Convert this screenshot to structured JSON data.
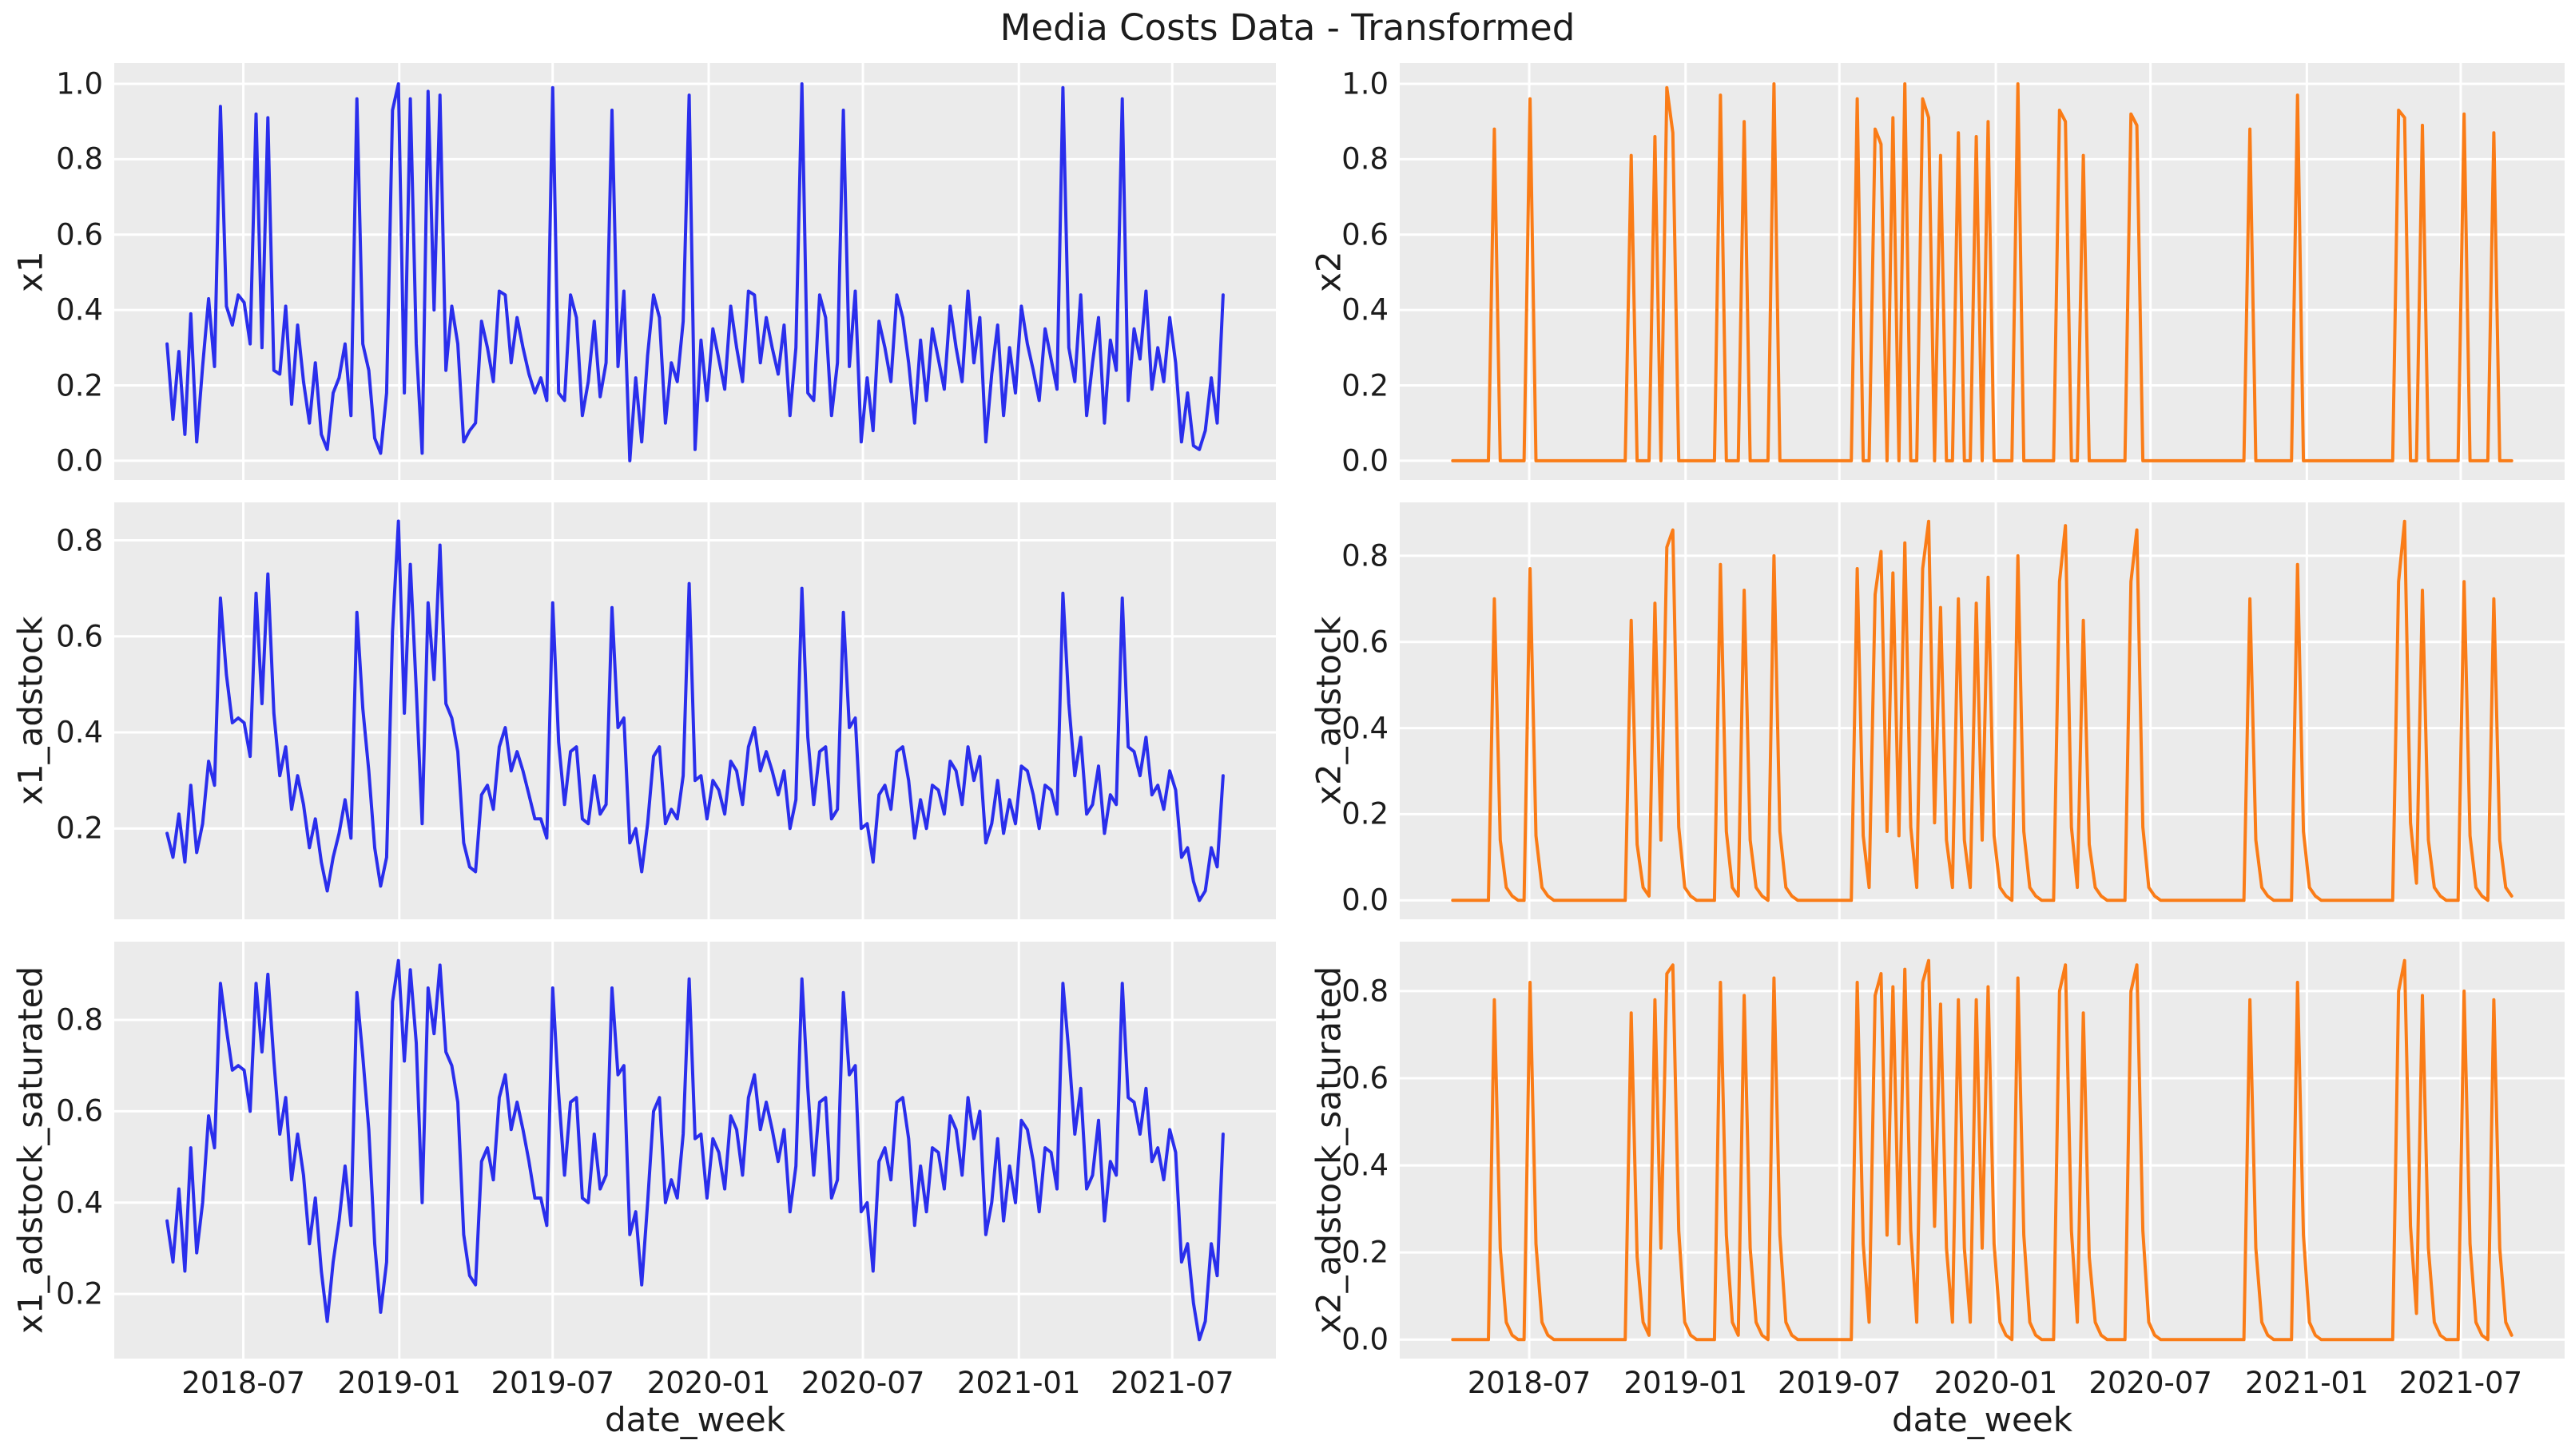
{
  "title": "Media Costs Data - Transformed",
  "style": {
    "background": "#ffffff",
    "plot_background": "#ebebeb",
    "grid_color": "#ffffff",
    "text_color": "#1c1c1c",
    "x1_color": "#2a2eec",
    "x2_color": "#fa7c17"
  },
  "chart_data": {
    "type": "line",
    "suptitle": "Media Costs Data - Transformed",
    "xlabel": "date_week",
    "n_weeks": 179,
    "x_axis_range": [
      "2018-04",
      "2021-08"
    ],
    "grid": true,
    "legend": false,
    "x_ticks": [
      {
        "label": "2018-07",
        "week_index": 12.86
      },
      {
        "label": "2019-01",
        "week_index": 39.14
      },
      {
        "label": "2019-07",
        "week_index": 65.0
      },
      {
        "label": "2020-01",
        "week_index": 91.29
      },
      {
        "label": "2020-07",
        "week_index": 117.29
      },
      {
        "label": "2021-01",
        "week_index": 143.57
      },
      {
        "label": "2021-07",
        "week_index": 169.43
      }
    ],
    "charts": [
      {
        "id": "x1",
        "ylabel": "x1",
        "color": "#2a2eec",
        "yticks": [
          0.0,
          0.2,
          0.4,
          0.6,
          0.8,
          1.0
        ],
        "ylim": [
          -0.051,
          1.055
        ],
        "values": [
          0.31,
          0.11,
          0.29,
          0.07,
          0.39,
          0.05,
          0.25,
          0.43,
          0.25,
          0.94,
          0.41,
          0.36,
          0.44,
          0.42,
          0.31,
          0.92,
          0.3,
          0.91,
          0.24,
          0.23,
          0.41,
          0.15,
          0.36,
          0.21,
          0.1,
          0.26,
          0.07,
          0.03,
          0.18,
          0.22,
          0.31,
          0.12,
          0.96,
          0.31,
          0.24,
          0.06,
          0.02,
          0.18,
          0.93,
          1.0,
          0.18,
          0.96,
          0.31,
          0.02,
          0.98,
          0.4,
          0.97,
          0.24,
          0.41,
          0.31,
          0.05,
          0.08,
          0.1,
          0.37,
          0.3,
          0.21,
          0.45,
          0.44,
          0.26,
          0.38,
          0.3,
          0.23,
          0.18,
          0.22,
          0.16,
          0.99,
          0.18,
          0.16,
          0.44,
          0.38,
          0.12,
          0.21,
          0.37,
          0.17,
          0.26,
          0.93,
          0.25,
          0.45,
          0.0,
          0.22,
          0.05,
          0.28,
          0.44,
          0.38,
          0.1,
          0.26,
          0.21,
          0.37,
          0.97,
          0.03,
          0.32,
          0.16,
          0.35,
          0.27,
          0.19,
          0.41,
          0.3,
          0.21,
          0.45,
          0.44,
          0.26,
          0.38,
          0.3,
          0.23,
          0.36,
          0.12,
          0.3,
          1.0,
          0.18,
          0.16,
          0.44,
          0.38,
          0.12,
          0.26,
          0.93,
          0.25,
          0.45,
          0.05,
          0.22,
          0.08,
          0.37,
          0.3,
          0.21,
          0.44,
          0.38,
          0.26,
          0.1,
          0.32,
          0.16,
          0.35,
          0.27,
          0.19,
          0.41,
          0.3,
          0.21,
          0.45,
          0.26,
          0.38,
          0.05,
          0.23,
          0.36,
          0.12,
          0.3,
          0.18,
          0.41,
          0.31,
          0.24,
          0.16,
          0.35,
          0.27,
          0.19,
          0.99,
          0.3,
          0.21,
          0.44,
          0.12,
          0.26,
          0.38,
          0.1,
          0.32,
          0.24,
          0.96,
          0.16,
          0.35,
          0.27,
          0.45,
          0.19,
          0.3,
          0.21,
          0.38,
          0.26,
          0.05,
          0.18,
          0.04,
          0.03,
          0.08,
          0.22,
          0.1,
          0.44
        ]
      },
      {
        "id": "x2",
        "ylabel": "x2",
        "color": "#fa7c17",
        "yticks": [
          0.0,
          0.2,
          0.4,
          0.6,
          0.8,
          1.0
        ],
        "ylim": [
          -0.051,
          1.055
        ],
        "values": [
          0,
          0,
          0,
          0,
          0,
          0,
          0,
          0.88,
          0,
          0,
          0,
          0,
          0,
          0.96,
          0,
          0,
          0,
          0,
          0,
          0,
          0,
          0,
          0,
          0,
          0,
          0,
          0,
          0,
          0,
          0,
          0.81,
          0,
          0,
          0,
          0.86,
          0,
          0.99,
          0.87,
          0,
          0,
          0,
          0,
          0,
          0,
          0,
          0.97,
          0,
          0,
          0,
          0.9,
          0,
          0,
          0,
          0,
          1.0,
          0,
          0,
          0,
          0,
          0,
          0,
          0,
          0,
          0,
          0,
          0,
          0,
          0,
          0.96,
          0,
          0,
          0.88,
          0.84,
          0,
          0.91,
          0,
          1.0,
          0,
          0,
          0.96,
          0.91,
          0,
          0.81,
          0,
          0,
          0.87,
          0,
          0,
          0.86,
          0,
          0.9,
          0,
          0,
          0,
          0,
          1.0,
          0,
          0,
          0,
          0,
          0,
          0,
          0.93,
          0.9,
          0,
          0,
          0.81,
          0,
          0,
          0,
          0,
          0,
          0,
          0,
          0.92,
          0.89,
          0,
          0,
          0,
          0,
          0,
          0,
          0,
          0,
          0,
          0,
          0,
          0,
          0,
          0,
          0,
          0,
          0,
          0,
          0.88,
          0,
          0,
          0,
          0,
          0,
          0,
          0,
          0.97,
          0,
          0,
          0,
          0,
          0,
          0,
          0,
          0,
          0,
          0,
          0,
          0,
          0,
          0,
          0,
          0,
          0.93,
          0.91,
          0,
          0,
          0.89,
          0,
          0,
          0,
          0,
          0,
          0,
          0.92,
          0,
          0,
          0,
          0,
          0.87,
          0,
          0,
          0
        ]
      },
      {
        "id": "x1_adstock",
        "ylabel": "x1_adstock",
        "color": "#2a2eec",
        "yticks": [
          0.2,
          0.4,
          0.6,
          0.8
        ],
        "ylim": [
          0.011,
          0.879
        ],
        "values": [
          0.19,
          0.14,
          0.23,
          0.13,
          0.29,
          0.15,
          0.21,
          0.34,
          0.29,
          0.68,
          0.52,
          0.42,
          0.43,
          0.42,
          0.35,
          0.69,
          0.46,
          0.73,
          0.44,
          0.31,
          0.37,
          0.24,
          0.31,
          0.25,
          0.16,
          0.22,
          0.13,
          0.07,
          0.14,
          0.19,
          0.26,
          0.18,
          0.65,
          0.45,
          0.32,
          0.16,
          0.08,
          0.14,
          0.61,
          0.84,
          0.44,
          0.75,
          0.49,
          0.21,
          0.67,
          0.51,
          0.79,
          0.46,
          0.43,
          0.36,
          0.17,
          0.12,
          0.11,
          0.27,
          0.29,
          0.24,
          0.37,
          0.41,
          0.32,
          0.36,
          0.32,
          0.27,
          0.22,
          0.22,
          0.18,
          0.67,
          0.38,
          0.25,
          0.36,
          0.37,
          0.22,
          0.21,
          0.31,
          0.23,
          0.25,
          0.66,
          0.41,
          0.43,
          0.17,
          0.2,
          0.11,
          0.21,
          0.35,
          0.37,
          0.21,
          0.24,
          0.22,
          0.31,
          0.71,
          0.3,
          0.31,
          0.22,
          0.3,
          0.28,
          0.23,
          0.34,
          0.32,
          0.25,
          0.37,
          0.41,
          0.32,
          0.36,
          0.32,
          0.27,
          0.32,
          0.2,
          0.26,
          0.7,
          0.39,
          0.25,
          0.36,
          0.37,
          0.22,
          0.24,
          0.65,
          0.41,
          0.43,
          0.2,
          0.21,
          0.13,
          0.27,
          0.29,
          0.24,
          0.36,
          0.37,
          0.3,
          0.18,
          0.26,
          0.2,
          0.29,
          0.28,
          0.23,
          0.34,
          0.32,
          0.25,
          0.37,
          0.3,
          0.35,
          0.17,
          0.21,
          0.3,
          0.19,
          0.26,
          0.21,
          0.33,
          0.32,
          0.27,
          0.2,
          0.29,
          0.28,
          0.23,
          0.69,
          0.46,
          0.31,
          0.39,
          0.23,
          0.25,
          0.33,
          0.19,
          0.27,
          0.25,
          0.68,
          0.37,
          0.36,
          0.31,
          0.39,
          0.27,
          0.29,
          0.24,
          0.32,
          0.28,
          0.14,
          0.16,
          0.09,
          0.05,
          0.07,
          0.16,
          0.12,
          0.31
        ]
      },
      {
        "id": "x2_adstock",
        "ylabel": "x2_adstock",
        "color": "#fa7c17",
        "yticks": [
          0.0,
          0.2,
          0.4,
          0.6,
          0.8
        ],
        "ylim": [
          -0.044,
          0.924
        ],
        "values": [
          0,
          0,
          0,
          0,
          0,
          0,
          0,
          0.7,
          0.14,
          0.03,
          0.01,
          0,
          0,
          0.77,
          0.15,
          0.03,
          0.01,
          0,
          0,
          0,
          0,
          0,
          0,
          0,
          0,
          0,
          0,
          0,
          0,
          0,
          0.65,
          0.13,
          0.03,
          0.01,
          0.69,
          0.14,
          0.82,
          0.86,
          0.17,
          0.03,
          0.01,
          0,
          0,
          0,
          0,
          0.78,
          0.16,
          0.03,
          0.01,
          0.72,
          0.14,
          0.03,
          0.01,
          0,
          0.8,
          0.16,
          0.03,
          0.01,
          0,
          0,
          0,
          0,
          0,
          0,
          0,
          0,
          0,
          0,
          0.77,
          0.15,
          0.03,
          0.71,
          0.81,
          0.16,
          0.76,
          0.15,
          0.83,
          0.17,
          0.03,
          0.77,
          0.88,
          0.18,
          0.68,
          0.14,
          0.03,
          0.7,
          0.14,
          0.03,
          0.69,
          0.14,
          0.75,
          0.15,
          0.03,
          0.01,
          0,
          0.8,
          0.16,
          0.03,
          0.01,
          0,
          0,
          0,
          0.74,
          0.87,
          0.17,
          0.03,
          0.65,
          0.13,
          0.03,
          0.01,
          0,
          0,
          0,
          0,
          0.74,
          0.86,
          0.17,
          0.03,
          0.01,
          0,
          0,
          0,
          0,
          0,
          0,
          0,
          0,
          0,
          0,
          0,
          0,
          0,
          0,
          0,
          0.7,
          0.14,
          0.03,
          0.01,
          0,
          0,
          0,
          0,
          0.78,
          0.16,
          0.03,
          0.01,
          0,
          0,
          0,
          0,
          0,
          0,
          0,
          0,
          0,
          0,
          0,
          0,
          0,
          0.74,
          0.88,
          0.18,
          0.04,
          0.72,
          0.14,
          0.03,
          0.01,
          0,
          0,
          0,
          0.74,
          0.15,
          0.03,
          0.01,
          0,
          0.7,
          0.14,
          0.03,
          0.01
        ]
      },
      {
        "id": "x1_adstock_saturated",
        "ylabel": "x1_adstock_saturated",
        "color": "#2a2eec",
        "yticks": [
          0.2,
          0.4,
          0.6,
          0.8
        ],
        "ylim": [
          0.0585,
          0.9715
        ],
        "values": [
          0.36,
          0.27,
          0.43,
          0.25,
          0.52,
          0.29,
          0.4,
          0.59,
          0.52,
          0.88,
          0.78,
          0.69,
          0.7,
          0.69,
          0.6,
          0.88,
          0.73,
          0.9,
          0.71,
          0.55,
          0.63,
          0.45,
          0.55,
          0.46,
          0.31,
          0.41,
          0.25,
          0.14,
          0.27,
          0.36,
          0.48,
          0.35,
          0.86,
          0.72,
          0.56,
          0.31,
          0.16,
          0.27,
          0.84,
          0.93,
          0.71,
          0.91,
          0.75,
          0.4,
          0.87,
          0.77,
          0.92,
          0.73,
          0.7,
          0.62,
          0.33,
          0.24,
          0.22,
          0.49,
          0.52,
          0.45,
          0.63,
          0.68,
          0.56,
          0.62,
          0.56,
          0.49,
          0.41,
          0.41,
          0.35,
          0.87,
          0.64,
          0.46,
          0.62,
          0.63,
          0.41,
          0.4,
          0.55,
          0.43,
          0.46,
          0.87,
          0.68,
          0.7,
          0.33,
          0.38,
          0.22,
          0.4,
          0.6,
          0.63,
          0.4,
          0.45,
          0.41,
          0.55,
          0.89,
          0.54,
          0.55,
          0.41,
          0.54,
          0.51,
          0.43,
          0.59,
          0.56,
          0.46,
          0.63,
          0.68,
          0.56,
          0.62,
          0.56,
          0.49,
          0.56,
          0.38,
          0.48,
          0.89,
          0.65,
          0.46,
          0.62,
          0.63,
          0.41,
          0.45,
          0.86,
          0.68,
          0.7,
          0.38,
          0.4,
          0.25,
          0.49,
          0.52,
          0.45,
          0.62,
          0.63,
          0.54,
          0.35,
          0.48,
          0.38,
          0.52,
          0.51,
          0.43,
          0.59,
          0.56,
          0.46,
          0.63,
          0.54,
          0.6,
          0.33,
          0.4,
          0.54,
          0.36,
          0.48,
          0.4,
          0.58,
          0.56,
          0.49,
          0.38,
          0.52,
          0.51,
          0.43,
          0.88,
          0.73,
          0.55,
          0.65,
          0.43,
          0.46,
          0.58,
          0.36,
          0.49,
          0.46,
          0.88,
          0.63,
          0.62,
          0.55,
          0.65,
          0.49,
          0.52,
          0.45,
          0.56,
          0.51,
          0.27,
          0.31,
          0.18,
          0.1,
          0.14,
          0.31,
          0.24,
          0.55
        ]
      },
      {
        "id": "x2_adstock_saturated",
        "ylabel": "x2_adstock_saturated",
        "color": "#fa7c17",
        "yticks": [
          0.0,
          0.2,
          0.4,
          0.6,
          0.8
        ],
        "ylim": [
          -0.0435,
          0.9135
        ],
        "values": [
          0,
          0,
          0,
          0,
          0,
          0,
          0,
          0.78,
          0.21,
          0.04,
          0.01,
          0,
          0,
          0.82,
          0.22,
          0.04,
          0.01,
          0,
          0,
          0,
          0,
          0,
          0,
          0,
          0,
          0,
          0,
          0,
          0,
          0,
          0.75,
          0.19,
          0.04,
          0.01,
          0.78,
          0.21,
          0.84,
          0.86,
          0.25,
          0.04,
          0.01,
          0,
          0,
          0,
          0,
          0.82,
          0.24,
          0.04,
          0.01,
          0.79,
          0.21,
          0.04,
          0.01,
          0,
          0.83,
          0.24,
          0.04,
          0.01,
          0,
          0,
          0,
          0,
          0,
          0,
          0,
          0,
          0,
          0,
          0.82,
          0.22,
          0.04,
          0.79,
          0.84,
          0.24,
          0.81,
          0.22,
          0.85,
          0.25,
          0.04,
          0.82,
          0.87,
          0.26,
          0.77,
          0.21,
          0.04,
          0.78,
          0.21,
          0.04,
          0.78,
          0.21,
          0.81,
          0.22,
          0.04,
          0.01,
          0,
          0.83,
          0.24,
          0.04,
          0.01,
          0,
          0,
          0,
          0.8,
          0.86,
          0.25,
          0.04,
          0.75,
          0.19,
          0.04,
          0.01,
          0,
          0,
          0,
          0,
          0.8,
          0.86,
          0.25,
          0.04,
          0.01,
          0,
          0,
          0,
          0,
          0,
          0,
          0,
          0,
          0,
          0,
          0,
          0,
          0,
          0,
          0,
          0.78,
          0.21,
          0.04,
          0.01,
          0,
          0,
          0,
          0,
          0.82,
          0.24,
          0.04,
          0.01,
          0,
          0,
          0,
          0,
          0,
          0,
          0,
          0,
          0,
          0,
          0,
          0,
          0,
          0.8,
          0.87,
          0.26,
          0.06,
          0.79,
          0.21,
          0.04,
          0.01,
          0,
          0,
          0,
          0.8,
          0.22,
          0.04,
          0.01,
          0,
          0.78,
          0.21,
          0.04,
          0.01
        ]
      }
    ]
  }
}
